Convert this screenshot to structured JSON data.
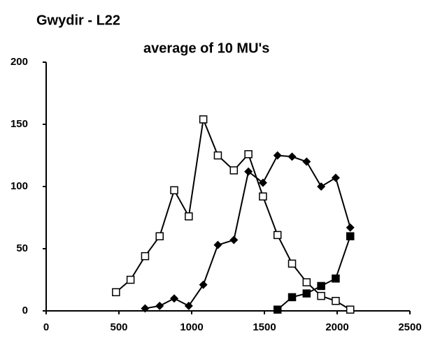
{
  "chart_data": {
    "type": "line",
    "title": "Gwydir  -  L22",
    "subtitle": "average of 10 MU's",
    "xlim": [
      0,
      2500
    ],
    "xticks": [
      0,
      500,
      1000,
      1500,
      2000,
      2500
    ],
    "ylim": [
      0,
      200
    ],
    "yticks": [
      0,
      50,
      100,
      150,
      200
    ],
    "series": [
      {
        "color": "#000000",
        "marker": "open-square",
        "x": [
          480,
          580,
          680,
          780,
          880,
          980,
          1080,
          1180,
          1290,
          1390,
          1490,
          1590,
          1690,
          1790,
          1890,
          1990,
          2090
        ],
        "values": [
          15,
          25,
          44,
          60,
          97,
          76,
          154,
          125,
          113,
          126,
          92,
          61,
          38,
          23,
          12,
          8,
          1
        ]
      },
      {
        "color": "#000000",
        "marker": "diamond",
        "x": [
          680,
          780,
          880,
          980,
          1080,
          1180,
          1290,
          1390,
          1490,
          1590,
          1690,
          1790,
          1890,
          1990,
          2090
        ],
        "values": [
          2,
          4,
          10,
          4,
          21,
          53,
          57,
          112,
          103,
          125,
          124,
          120,
          100,
          107,
          67
        ]
      },
      {
        "color": "#000000",
        "marker": "square",
        "x": [
          1590,
          1690,
          1790,
          1890,
          1990,
          2090
        ],
        "values": [
          1,
          11,
          14,
          20,
          26,
          60
        ]
      }
    ]
  }
}
